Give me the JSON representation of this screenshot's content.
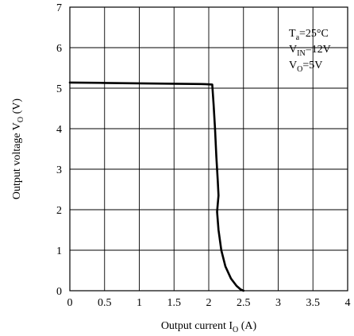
{
  "chart_data": {
    "type": "line",
    "title": "",
    "xlabel": {
      "main": "Output current I",
      "sub": "O",
      "tail": " (A)"
    },
    "ylabel": {
      "main": "Output voltage V",
      "sub": "O",
      "tail": " (V)"
    },
    "xlim": [
      0,
      4
    ],
    "ylim": [
      0,
      7
    ],
    "grid": true,
    "x_ticks": [
      "0",
      "0.5",
      "1",
      "1.5",
      "2",
      "2.5",
      "3",
      "3.5",
      "4"
    ],
    "y_ticks": [
      "0",
      "1",
      "2",
      "3",
      "4",
      "5",
      "6",
      "7"
    ],
    "conditions": [
      {
        "main": "T",
        "sub": "a",
        "tail": "=25°C"
      },
      {
        "main": "V",
        "sub": "IN",
        "tail": "=12V"
      },
      {
        "main": "V",
        "sub": "O",
        "tail": "=5V"
      }
    ],
    "series": [
      {
        "color": "#000000",
        "x": [
          0,
          0.5,
          1.0,
          1.5,
          1.95,
          2.05,
          2.07,
          2.09,
          2.11,
          2.13,
          2.14,
          2.13,
          2.12,
          2.14,
          2.18,
          2.24,
          2.32,
          2.4,
          2.46,
          2.5
        ],
        "y": [
          5.14,
          5.13,
          5.12,
          5.11,
          5.1,
          5.09,
          4.6,
          4.0,
          3.3,
          2.7,
          2.35,
          2.15,
          1.95,
          1.5,
          1.0,
          0.6,
          0.3,
          0.12,
          0.03,
          0.0
        ]
      }
    ]
  }
}
